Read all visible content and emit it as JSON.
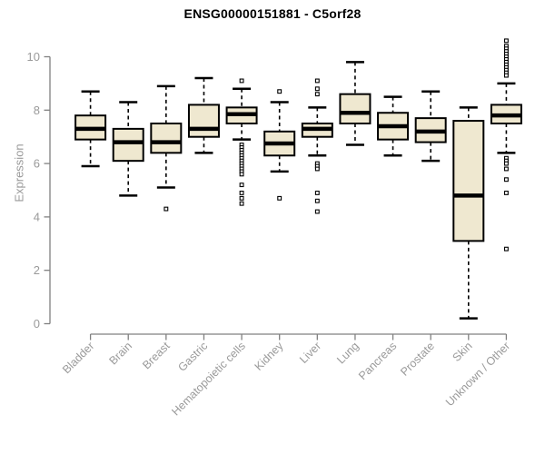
{
  "chart_data": {
    "type": "boxplot",
    "title": "ENSG00000151881 - C5orf28",
    "ylabel": "Expression",
    "xlabel": "",
    "ylim": [
      0,
      10
    ],
    "yticks": [
      0,
      2,
      4,
      6,
      8,
      10
    ],
    "grid": false,
    "legend": "none",
    "categories": [
      "Bladder",
      "Brain",
      "Breast",
      "Gastric",
      "Hematopoietic cells",
      "Kidney",
      "Liver",
      "Lung",
      "Pancreas",
      "Prostate",
      "Skin",
      "Unknown / Other"
    ],
    "series": [
      {
        "name": "Bladder",
        "low": 5.9,
        "q1": 6.9,
        "median": 7.3,
        "q3": 7.8,
        "high": 8.7,
        "outliers": []
      },
      {
        "name": "Brain",
        "low": 4.8,
        "q1": 6.1,
        "median": 6.8,
        "q3": 7.3,
        "high": 8.3,
        "outliers": []
      },
      {
        "name": "Breast",
        "low": 5.1,
        "q1": 6.4,
        "median": 6.8,
        "q3": 7.5,
        "high": 8.9,
        "outliers": [
          4.3
        ]
      },
      {
        "name": "Gastric",
        "low": 6.4,
        "q1": 7.0,
        "median": 7.3,
        "q3": 8.2,
        "high": 9.2,
        "outliers": []
      },
      {
        "name": "Hematopoietic cells",
        "low": 6.9,
        "q1": 7.5,
        "median": 7.85,
        "q3": 8.1,
        "high": 8.8,
        "outliers": [
          9.1,
          6.7,
          6.6,
          6.5,
          6.4,
          6.3,
          6.2,
          6.1,
          6.0,
          5.9,
          5.8,
          5.7,
          5.6,
          5.2,
          4.9,
          4.7,
          4.5
        ]
      },
      {
        "name": "Kidney",
        "low": 5.7,
        "q1": 6.3,
        "median": 6.75,
        "q3": 7.2,
        "high": 8.3,
        "outliers": [
          8.7,
          4.7
        ]
      },
      {
        "name": "Liver",
        "low": 6.3,
        "q1": 7.0,
        "median": 7.3,
        "q3": 7.5,
        "high": 8.1,
        "outliers": [
          9.1,
          8.8,
          8.6,
          6.0,
          5.9,
          5.8,
          4.9,
          4.6,
          4.2
        ]
      },
      {
        "name": "Lung",
        "low": 6.7,
        "q1": 7.5,
        "median": 7.9,
        "q3": 8.6,
        "high": 9.8,
        "outliers": []
      },
      {
        "name": "Pancreas",
        "low": 6.3,
        "q1": 6.9,
        "median": 7.4,
        "q3": 7.9,
        "high": 8.5,
        "outliers": []
      },
      {
        "name": "Prostate",
        "low": 6.1,
        "q1": 6.8,
        "median": 7.2,
        "q3": 7.7,
        "high": 8.7,
        "outliers": []
      },
      {
        "name": "Skin",
        "low": 0.2,
        "q1": 3.1,
        "median": 4.8,
        "q3": 7.6,
        "high": 8.1,
        "outliers": []
      },
      {
        "name": "Unknown / Other",
        "low": 6.4,
        "q1": 7.5,
        "median": 7.8,
        "q3": 8.2,
        "high": 9.0,
        "outliers": [
          10.6,
          10.4,
          10.3,
          10.2,
          10.1,
          10.0,
          9.9,
          9.8,
          9.7,
          9.6,
          9.5,
          9.4,
          9.3,
          6.2,
          6.1,
          6.0,
          5.8,
          5.4,
          4.9,
          2.8
        ]
      }
    ],
    "colors": {
      "box_fill": "#efe8d0",
      "box_border": "#000000",
      "median": "#000000",
      "whisker": "#000000",
      "outlier_fill": "#ffffff",
      "axis": "#808080",
      "tick_label": "#9a9a9a",
      "title": "#000000"
    }
  }
}
